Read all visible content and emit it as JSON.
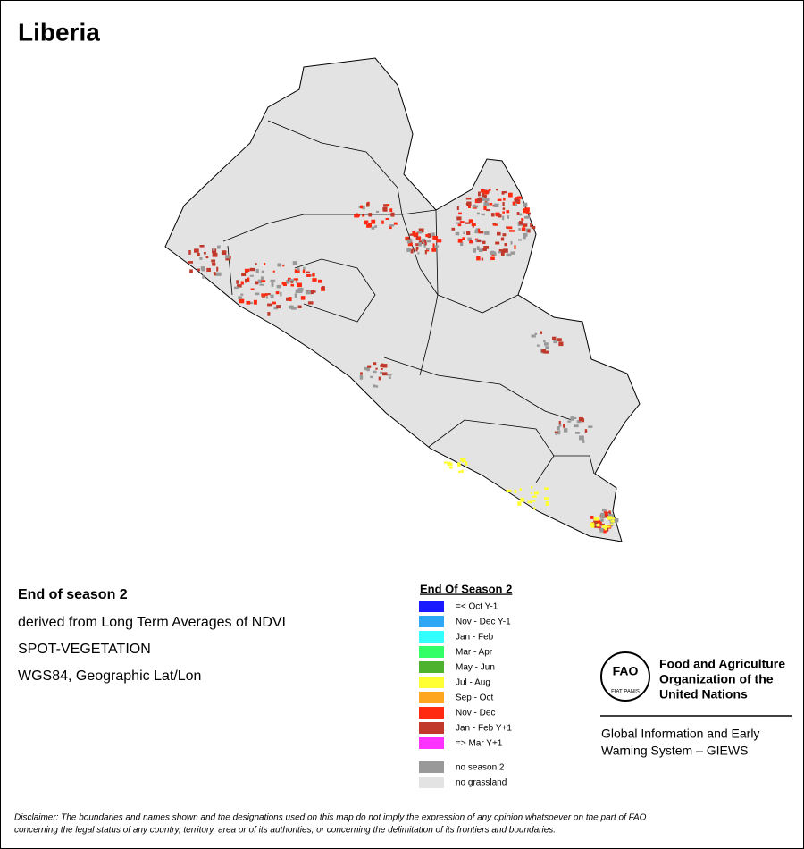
{
  "title": "Liberia",
  "info": {
    "heading": "End of season 2",
    "lines": [
      "derived from Long Term Averages of NDVI",
      "SPOT-VEGETATION",
      "WGS84, Geographic Lat/Lon"
    ]
  },
  "legend": {
    "title": "End Of Season 2",
    "items": [
      {
        "label": "=< Oct Y-1",
        "color": "#1a1aff"
      },
      {
        "label": "Nov - Dec Y-1",
        "color": "#2ea8f5"
      },
      {
        "label": "Jan - Feb",
        "color": "#33ffff"
      },
      {
        "label": "Mar - Apr",
        "color": "#33ff66"
      },
      {
        "label": "May - Jun",
        "color": "#4db32e"
      },
      {
        "label": "Jul - Aug",
        "color": "#ffff33"
      },
      {
        "label": "Sep - Oct",
        "color": "#ffa620"
      },
      {
        "label": "Nov - Dec",
        "color": "#ff2a10"
      },
      {
        "label": "Jan - Feb Y+1",
        "color": "#c0392b"
      },
      {
        "label": "=> Mar Y+1",
        "color": "#ff33ff"
      }
    ],
    "extra": [
      {
        "label": "no season 2",
        "color": "#999999"
      },
      {
        "label": "no grassland",
        "color": "#e3e3e3"
      }
    ]
  },
  "logo": {
    "emblem": "FAO",
    "motto": "FIAT PANIS",
    "org_lines": [
      "Food and Agriculture",
      "Organization of the",
      "United Nations"
    ],
    "system_lines": [
      "Global Information and Early",
      "Warning System – GIEWS"
    ]
  },
  "disclaimer": [
    "Disclaimer: The boundaries and names shown and the designations used on this map do not imply the expression of any opinion whatsoever on the part of FAO",
    "concerning the legal status of any country, territory, area or of its authorities, or concerning the delimitation of its frontiers and boundaries."
  ]
}
